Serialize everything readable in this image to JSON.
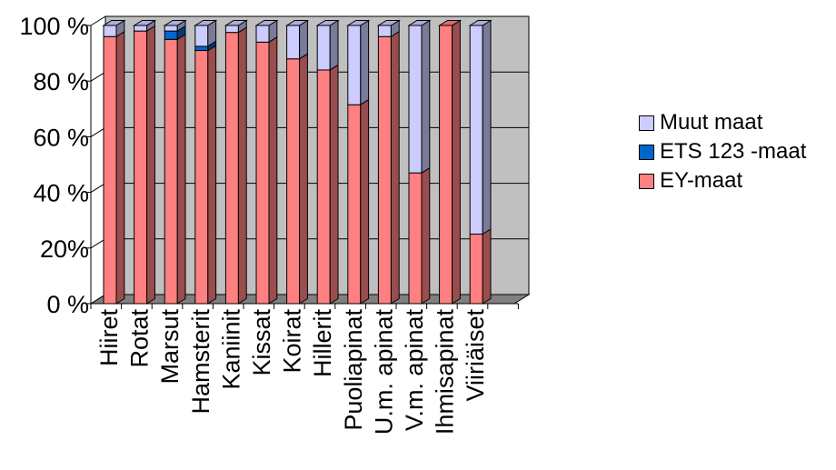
{
  "chart_data": {
    "type": "bar",
    "stacked": true,
    "percent": true,
    "three_d": true,
    "categories": [
      "Hiiret",
      "Rotat",
      "Marsut",
      "Hamsterit",
      "Kaniinit",
      "Kissat",
      "Koirat",
      "Hillerit",
      "Puoliapinat",
      "U.m. apinat",
      "V.m. apinat",
      "Ihmisapinat",
      "Viiriäiset"
    ],
    "series": [
      {
        "name": "EY-maat",
        "color": "#ff8080",
        "values": [
          96,
          98,
          95,
          91,
          97.5,
          94,
          88,
          84,
          71.5,
          96,
          47,
          100,
          25
        ]
      },
      {
        "name": "ETS 123 -maat",
        "color": "#0066cc",
        "values": [
          0,
          0,
          3,
          1.5,
          0,
          0,
          0,
          0,
          0,
          0,
          0,
          0,
          0
        ]
      },
      {
        "name": "Muut maat",
        "color": "#ccccff",
        "values": [
          4,
          2,
          2,
          7.5,
          2.5,
          6,
          12,
          16,
          28.5,
          4,
          53,
          0,
          75
        ]
      }
    ],
    "y_ticks": [
      "0 %",
      "20%",
      "40 %",
      "60 %",
      "80 %",
      "100 %"
    ],
    "ylim": [
      0,
      100
    ],
    "grid": true,
    "legend_position": "right"
  },
  "legend": {
    "items": [
      {
        "label": "Muut maat",
        "color": "#ccccff"
      },
      {
        "label": "ETS 123 -maat",
        "color": "#0066cc"
      },
      {
        "label": "EY-maat",
        "color": "#ff8080"
      }
    ]
  }
}
